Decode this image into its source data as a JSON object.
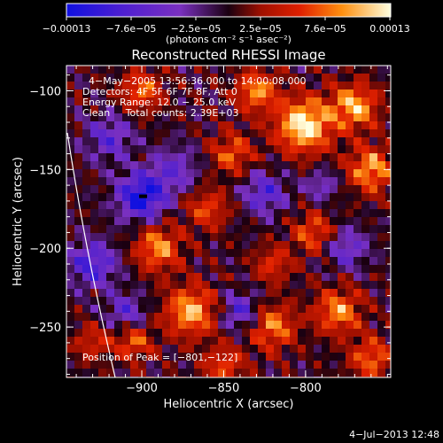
{
  "chart_data": {
    "type": "heatmap",
    "title": "Reconstructed RHESSI Image",
    "xlabel": "Heliocentric X (arcsec)",
    "ylabel": "Heliocentric Y (arcsec)",
    "xlim": [
      -946,
      -748
    ],
    "ylim": [
      -282,
      -84
    ],
    "x_ticks": [
      -900,
      -850,
      -800
    ],
    "y_ticks": [
      -250,
      -200,
      -150,
      -100
    ],
    "x_tick_labels": [
      "−900",
      "−850",
      "−800"
    ],
    "y_tick_labels": [
      "−250",
      "−200",
      "−150",
      "−100"
    ],
    "colorbar": {
      "range": [
        -0.00013,
        0.00013
      ],
      "tick_labels": [
        "−0.00013",
        "−7.6e−05",
        "−2.5e−05",
        "2.5e−05",
        "7.6e−05",
        "0.00013"
      ],
      "unit": "(photons cm⁻² s⁻¹ asec⁻²)"
    },
    "annotations": [
      "4−May−2005 13:56:36.000 to 14:00:08.000",
      "Detectors: 4F 5F 6F 7F 8F, Att 0",
      "Energy Range: 12.0 − 25.0 keV",
      "Clean     Total counts: 2.39E+03"
    ],
    "peak_label": "Position of Peak = [−801,−122]",
    "peak": [
      -801,
      -122
    ],
    "grid": false
  },
  "footer": {
    "timestamp": "4−Jul−2013 12:48"
  }
}
